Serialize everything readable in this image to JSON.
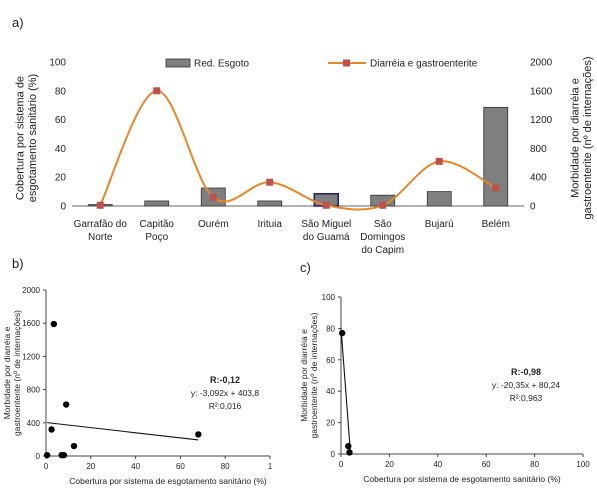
{
  "panels": {
    "a": "a)",
    "b": "b)",
    "c": "c)"
  },
  "chart_data": [
    {
      "id": "a",
      "type": "bar",
      "categories": [
        "Garrafão do Norte",
        "Capitão Poço",
        "Ourém",
        "Irituia",
        "São Miguel do Guamá",
        "São Domingos do Capim",
        "Bujarú",
        "Belém"
      ],
      "category_lines": [
        [
          "Garrafão do",
          "Norte"
        ],
        [
          "Capitão",
          "Poço"
        ],
        [
          "Ourém"
        ],
        [
          "Irituia"
        ],
        [
          "São Miguel",
          "do Guamá"
        ],
        [
          "São",
          "Domingos",
          "do Capim"
        ],
        [
          "Bujarú"
        ],
        [
          "Belém"
        ]
      ],
      "series": [
        {
          "name": "Red. Esgoto",
          "type": "bar",
          "axis": "left",
          "values": [
            1,
            3.5,
            12.5,
            3.5,
            8.5,
            7.5,
            10,
            68.5
          ],
          "color": "#7f7f7f"
        },
        {
          "name": "Diarréia e gastroenterite",
          "type": "line",
          "axis": "right",
          "values": [
            10,
            1600,
            120,
            330,
            10,
            10,
            620,
            250
          ],
          "color": "#e8862a"
        }
      ],
      "ylabel_left": [
        "Cobertura por sistema de",
        "esgotamento sanitário (%)"
      ],
      "ylabel_right": [
        "Morbidade por diarréia e",
        "gastroenterite (nº de internações)"
      ],
      "ylim_left": [
        0,
        100
      ],
      "ylim_right": [
        0,
        2000
      ],
      "yticks_left": [
        "0",
        "20",
        "40",
        "60",
        "80",
        "100"
      ],
      "yticks_right": [
        "0",
        "400",
        "800",
        "1200",
        "1600",
        "2000"
      ],
      "legend": "top"
    },
    {
      "id": "b",
      "type": "scatter",
      "points": [
        [
          0.5,
          10
        ],
        [
          2.5,
          320
        ],
        [
          3.5,
          1590
        ],
        [
          7,
          10
        ],
        [
          8,
          10
        ],
        [
          9,
          620
        ],
        [
          12.5,
          120
        ],
        [
          68,
          260
        ]
      ],
      "trendline": {
        "slope": -3.092,
        "intercept": 403.8
      },
      "annotation": {
        "r": "R:-0,12",
        "equation": "y: -3,092x + 403,8",
        "r2": "R²:0,016"
      },
      "xlabel": "Cobertura por sistema de esgotamento sanitário (%)",
      "ylabel": [
        "Morbidade por diarréia e",
        "gastroenterite (nº de internações)"
      ],
      "xlim": [
        0,
        100
      ],
      "ylim": [
        0,
        2000
      ],
      "xticks": [
        "0",
        "20",
        "40",
        "60",
        "80",
        "1"
      ],
      "yticks": [
        "0",
        "400",
        "800",
        "1200",
        "1600",
        "2000"
      ]
    },
    {
      "id": "c",
      "type": "scatter",
      "points": [
        [
          0.5,
          77
        ],
        [
          3,
          5
        ],
        [
          3.5,
          1
        ]
      ],
      "trendline": {
        "slope": -20.35,
        "intercept": 80.24,
        "x_range": [
          0,
          3.9
        ]
      },
      "annotation": {
        "r": "R:-0,98",
        "equation": "y: -20,35x + 80,24",
        "r2": "R²:0,963"
      },
      "xlabel": "Cobertura por sistema de esgotamento sanitário (%)",
      "ylabel": [
        "Morbidade por diarréia e",
        "gastroenterite (nº de internações)"
      ],
      "xlim": [
        0,
        100
      ],
      "ylim": [
        0,
        100
      ],
      "xticks": [
        "0",
        "20",
        "40",
        "60",
        "80",
        "100"
      ],
      "yticks": [
        "0",
        "20",
        "40",
        "60",
        "80",
        "100"
      ]
    }
  ]
}
